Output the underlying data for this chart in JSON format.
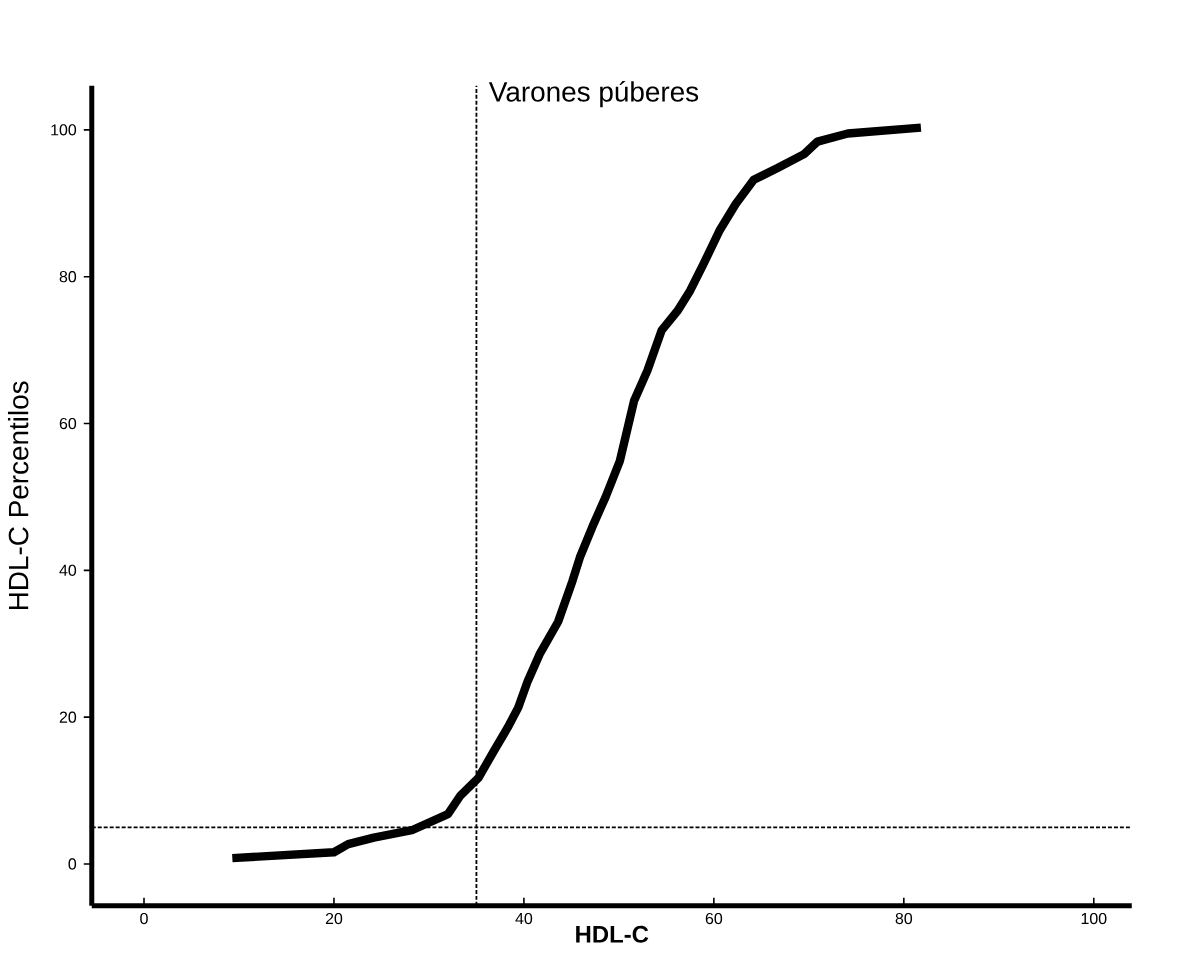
{
  "chart_data": {
    "type": "line",
    "title": "Varones púberes",
    "xlabel": "HDL-C",
    "ylabel": "HDL-C Percentilos",
    "x": [
      9.3,
      20,
      21.5,
      24.2,
      28.2,
      32,
      33.3,
      35.2,
      36.8,
      38.3,
      39.4,
      40.4,
      41.7,
      43.6,
      45.1,
      45.9,
      47.2,
      48.6,
      50.1,
      51.6,
      53,
      54.5,
      56.2,
      57.5,
      58.9,
      60.6,
      62.3,
      64.2,
      66.7,
      69.5,
      70.9,
      74.1,
      81.8
    ],
    "series": [
      {
        "color": "#000000",
        "values": [
          0.8,
          1.6,
          2.7,
          3.6,
          4.6,
          6.8,
          9.3,
          11.7,
          15.3,
          18.6,
          21.3,
          24.9,
          28.7,
          33,
          38.5,
          41.8,
          45.9,
          50,
          54.9,
          63.1,
          67.2,
          72.7,
          75.4,
          78.1,
          81.7,
          86.3,
          89.9,
          93.2,
          94.8,
          96.7,
          98.4,
          99.5,
          100.3
        ]
      }
    ],
    "xlim": [
      -5.5,
      104
    ],
    "ylim": [
      -5.7,
      106
    ],
    "xticks": [
      0,
      20,
      40,
      60,
      80,
      100
    ],
    "yticks": [
      0,
      20,
      40,
      60,
      80,
      100
    ],
    "grid": false,
    "marker": "none",
    "line_style": "solid",
    "ref_lines": [
      {
        "axis": "x",
        "value": 35,
        "color": "#000000",
        "line_style": "dashed"
      },
      {
        "axis": "y",
        "value": 5,
        "color": "#000000",
        "line_style": "dashed"
      }
    ]
  }
}
